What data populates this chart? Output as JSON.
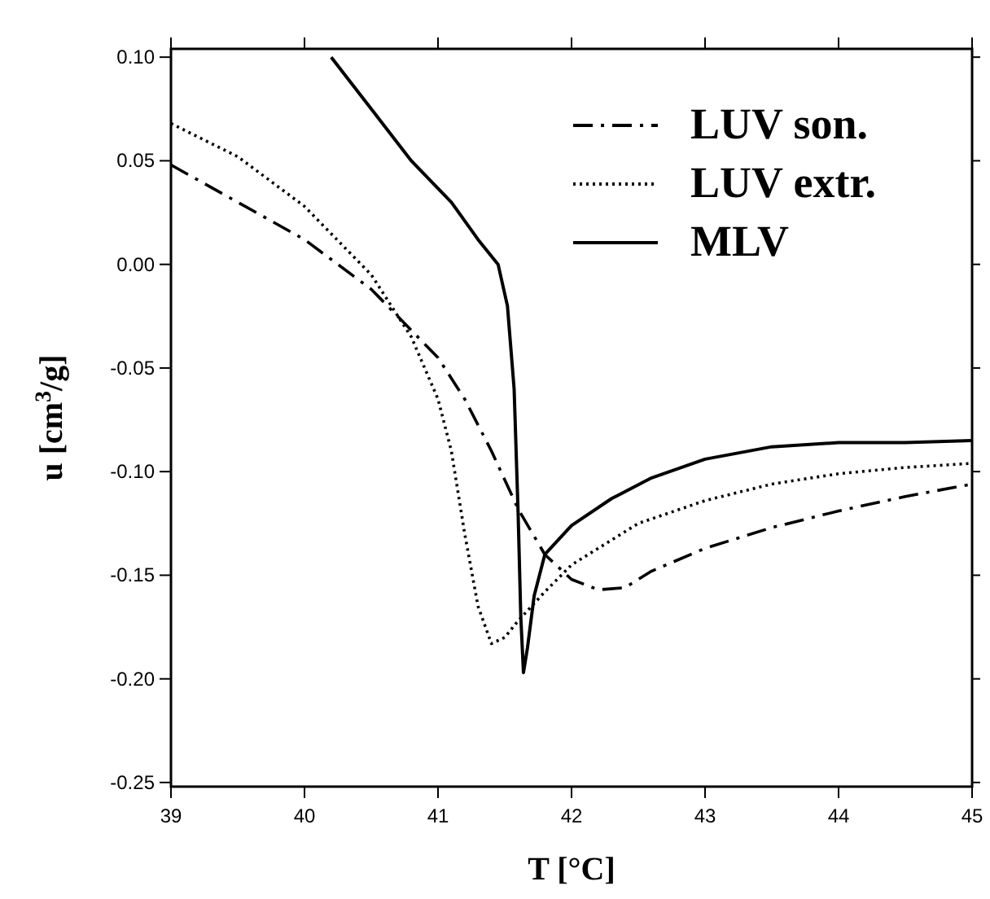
{
  "chart_data": {
    "type": "line",
    "xlabel": "T [°C]",
    "ylabel": "u [cm$^{3}$/g]",
    "xlim": [
      39,
      45
    ],
    "ylim": [
      -0.252,
      0.104
    ],
    "xticks": [
      39,
      40,
      41,
      42,
      43,
      44,
      45
    ],
    "yticks": [
      {
        "value": 0.1,
        "label": "0.10"
      },
      {
        "value": 0.05,
        "label": "0.05"
      },
      {
        "value": 0,
        "label": "0.00"
      },
      {
        "value": -0.05,
        "label": "-0.05"
      },
      {
        "value": -0.1,
        "label": "-0.10"
      },
      {
        "value": -0.15,
        "label": "-0.15"
      },
      {
        "value": -0.2,
        "label": "-0.20"
      },
      {
        "value": -0.25,
        "label": "-0.25"
      }
    ],
    "grid": false,
    "legend": "top right",
    "series": [
      {
        "name": "LUV son.",
        "color": "#000000",
        "line_style": "dashdot",
        "x": [
          39,
          39.5,
          40,
          40.5,
          41,
          41.2,
          41.4,
          41.6,
          41.8,
          42,
          42.2,
          42.4,
          42.6,
          43,
          43.5,
          44,
          44.5,
          45
        ],
        "values": [
          0.048,
          0.03,
          0.012,
          -0.012,
          -0.045,
          -0.065,
          -0.09,
          -0.118,
          -0.14,
          -0.152,
          -0.157,
          -0.156,
          -0.148,
          -0.137,
          -0.127,
          -0.119,
          -0.112,
          -0.106
        ]
      },
      {
        "name": "LUV extr.",
        "color": "#000000",
        "line_style": "dotted",
        "x": [
          39,
          39.5,
          40,
          40.5,
          40.8,
          41,
          41.1,
          41.2,
          41.3,
          41.4,
          41.5,
          41.6,
          41.8,
          42,
          42.5,
          43,
          43.5,
          44,
          44.5,
          45
        ],
        "values": [
          0.068,
          0.052,
          0.028,
          -0.005,
          -0.035,
          -0.065,
          -0.09,
          -0.13,
          -0.165,
          -0.183,
          -0.18,
          -0.172,
          -0.158,
          -0.145,
          -0.125,
          -0.114,
          -0.106,
          -0.101,
          -0.098,
          -0.096
        ]
      },
      {
        "name": "MLV",
        "color": "#000000",
        "line_style": "solid",
        "x": [
          40.2,
          40.5,
          40.8,
          41.1,
          41.3,
          41.45,
          41.52,
          41.57,
          41.6,
          41.62,
          41.64,
          41.67,
          41.72,
          41.8,
          42,
          42.3,
          42.6,
          43,
          43.5,
          44,
          44.5,
          45
        ],
        "values": [
          0.1,
          0.075,
          0.05,
          0.03,
          0.012,
          0,
          -0.02,
          -0.06,
          -0.12,
          -0.17,
          -0.197,
          -0.185,
          -0.16,
          -0.14,
          -0.126,
          -0.113,
          -0.103,
          -0.094,
          -0.088,
          -0.086,
          -0.086,
          -0.085
        ]
      }
    ]
  }
}
